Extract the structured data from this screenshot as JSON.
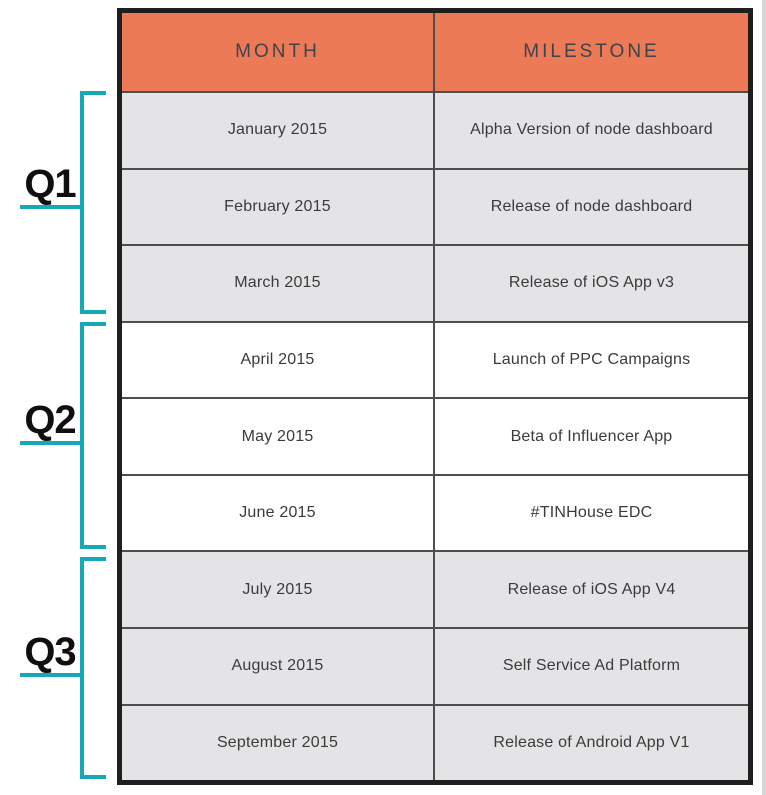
{
  "colors": {
    "header_bg": "#ED7A57",
    "shaded_row_bg": "#E4E4E6",
    "bracket_teal": "#17A8B8",
    "outer_border": "#1F1F1F",
    "grid_line": "#4E4E4E",
    "header_text": "#3E434B",
    "cell_text": "#3B3B3B"
  },
  "table": {
    "header": {
      "month": "MONTH",
      "milestone": "MILESTONE"
    },
    "rows": [
      {
        "month": "January 2015",
        "milestone": "Alpha Version of node dashboard"
      },
      {
        "month": "February 2015",
        "milestone": "Release of node dashboard"
      },
      {
        "month": "March 2015",
        "milestone": "Release of iOS App v3"
      },
      {
        "month": "April 2015",
        "milestone": "Launch of PPC Campaigns"
      },
      {
        "month": "May 2015",
        "milestone": "Beta of Influencer App"
      },
      {
        "month": "June 2015",
        "milestone": "#TINHouse EDC"
      },
      {
        "month": "July 2015",
        "milestone": "Release of iOS App V4"
      },
      {
        "month": "August 2015",
        "milestone": "Self Service Ad Platform"
      },
      {
        "month": "September 2015",
        "milestone": "Release of Android App V1"
      }
    ]
  },
  "quarters": [
    {
      "label": "Q1"
    },
    {
      "label": "Q2"
    },
    {
      "label": "Q3"
    }
  ]
}
